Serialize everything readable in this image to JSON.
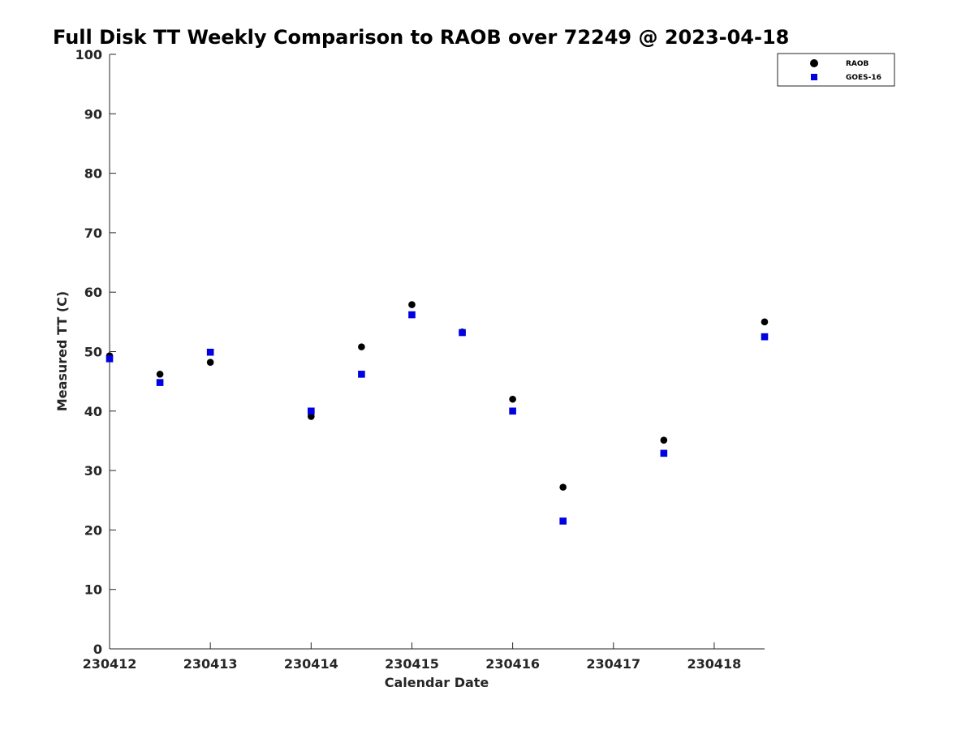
{
  "chart_data": {
    "type": "scatter",
    "title": "Full Disk TT Weekly Comparison to RAOB over 72249 @ 2023-04-18",
    "xlabel": "Calendar Date",
    "ylabel": "Measured TT (C)",
    "xlim": [
      230412,
      230418.5
    ],
    "ylim": [
      0,
      100
    ],
    "xticks": [
      230412,
      230413,
      230414,
      230415,
      230416,
      230417,
      230418
    ],
    "xtick_labels": [
      "230412",
      "230413",
      "230414",
      "230415",
      "230416",
      "230417",
      "230418"
    ],
    "yticks": [
      0,
      10,
      20,
      30,
      40,
      50,
      60,
      70,
      80,
      90,
      100
    ],
    "ytick_labels": [
      "0",
      "10",
      "20",
      "30",
      "40",
      "50",
      "60",
      "70",
      "80",
      "90",
      "100"
    ],
    "grid": false,
    "legend_position": "top-right",
    "series": [
      {
        "name": "RAOB",
        "marker": "circle",
        "color": "#000000",
        "points": [
          {
            "x": 230412.0,
            "y": 49.3
          },
          {
            "x": 230412.5,
            "y": 46.2
          },
          {
            "x": 230413.0,
            "y": 48.2
          },
          {
            "x": 230414.0,
            "y": 39.1
          },
          {
            "x": 230414.5,
            "y": 50.8
          },
          {
            "x": 230415.0,
            "y": 57.9
          },
          {
            "x": 230415.5,
            "y": 53.3
          },
          {
            "x": 230416.0,
            "y": 42.0
          },
          {
            "x": 230416.5,
            "y": 27.2
          },
          {
            "x": 230417.5,
            "y": 35.1
          },
          {
            "x": 230418.5,
            "y": 55.0
          }
        ]
      },
      {
        "name": "GOES-16",
        "marker": "square",
        "color": "#0000e0",
        "points": [
          {
            "x": 230412.0,
            "y": 48.8
          },
          {
            "x": 230412.5,
            "y": 44.8
          },
          {
            "x": 230413.0,
            "y": 49.9
          },
          {
            "x": 230414.0,
            "y": 40.0
          },
          {
            "x": 230414.5,
            "y": 46.2
          },
          {
            "x": 230415.0,
            "y": 56.2
          },
          {
            "x": 230415.5,
            "y": 53.2
          },
          {
            "x": 230416.0,
            "y": 40.0
          },
          {
            "x": 230416.5,
            "y": 21.5
          },
          {
            "x": 230417.5,
            "y": 32.9
          },
          {
            "x": 230418.5,
            "y": 52.5
          }
        ]
      }
    ]
  }
}
